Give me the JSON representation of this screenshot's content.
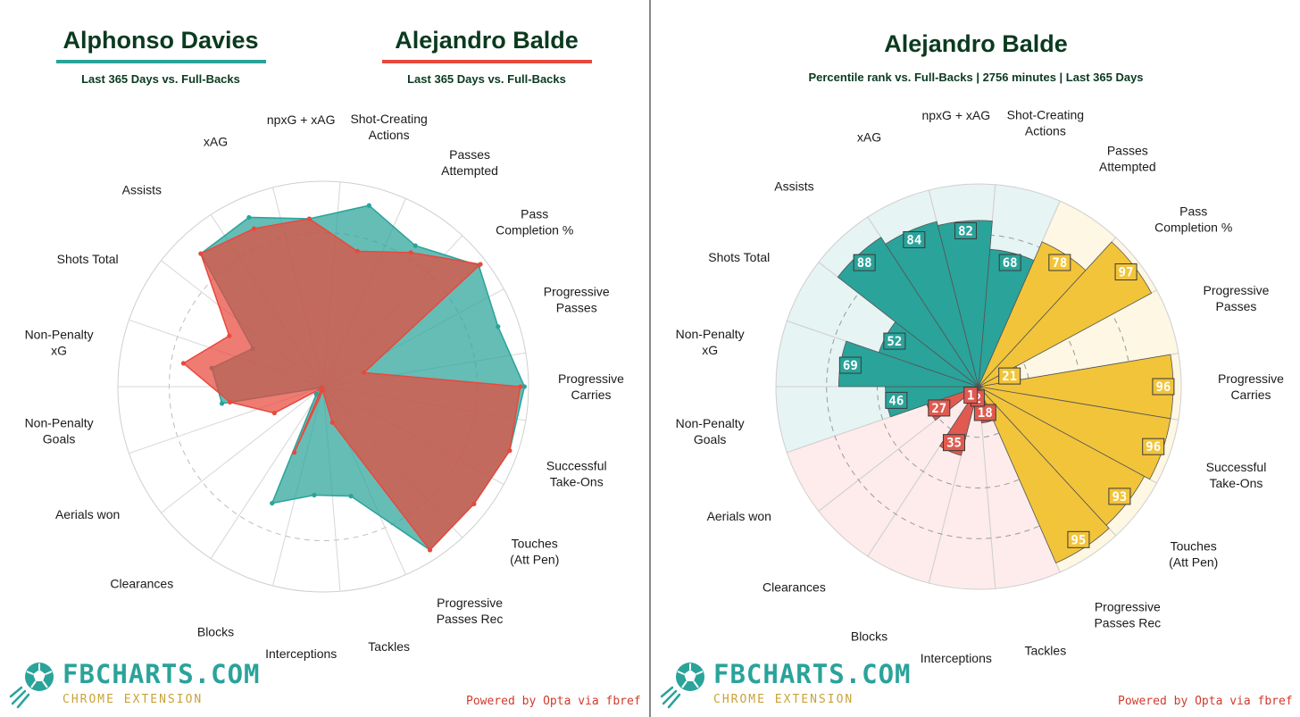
{
  "left": {
    "players": [
      {
        "name": "Alphonso Davies",
        "subtitle": "Last 365 Days vs. Full-Backs",
        "color": "#2aa39a"
      },
      {
        "name": "Alejandro Balde",
        "subtitle": "Last 365 Days vs. Full-Backs",
        "color": "#e8493d"
      }
    ]
  },
  "right": {
    "title": "Alejandro Balde",
    "subtitle": "Percentile rank vs. Full-Backs | 2756 minutes | Last 365 Days"
  },
  "branding": {
    "name": "FBCHARTS.COM",
    "tagline": "CHROME EXTENSION",
    "powered_by": "Powered by Opta via fbref"
  },
  "chart_data": [
    {
      "type": "radar",
      "categories": [
        "Progressive Carries",
        "Successful Take-Ons",
        "Touches (Att Pen)",
        "Progressive Passes Rec",
        "Tackles",
        "Interceptions",
        "Blocks",
        "Clearances",
        "Aerials won",
        "Non-Penalty Goals",
        "Non-Penalty xG",
        "Shots Total",
        "Assists",
        "xAG",
        "npxG + xAG",
        "Shot-Creating Actions",
        "Passes Attempted",
        "Pass Completion %",
        "Progressive Passes"
      ],
      "range": [
        0,
        100
      ],
      "series": [
        {
          "name": "Alphonso Davies",
          "color": "#2aa39a",
          "values": [
            98,
            96,
            93,
            95,
            55,
            53,
            62,
            5,
            1,
            50,
            55,
            39,
            88,
            90,
            82,
            91,
            82,
            96,
            90
          ]
        },
        {
          "name": "Alejandro Balde",
          "color": "#e8493d",
          "values": [
            96,
            96,
            93,
            95,
            18,
            2,
            35,
            1,
            27,
            46,
            69,
            52,
            88,
            84,
            82,
            68,
            78,
            97,
            21
          ]
        }
      ]
    },
    {
      "type": "polar-bar",
      "title": "Alejandro Balde",
      "range": [
        0,
        100
      ],
      "groups": [
        {
          "name": "attacking",
          "color": "#2aa39a",
          "background": "#e6f4f3"
        },
        {
          "name": "possession",
          "color": "#f2c43a",
          "background": "#fdf7e3"
        },
        {
          "name": "defending",
          "color": "#e05a50",
          "background": "#fdeceb"
        }
      ],
      "categories": [
        "Progressive Carries",
        "Successful Take-Ons",
        "Touches (Att Pen)",
        "Progressive Passes Rec",
        "Tackles",
        "Interceptions",
        "Blocks",
        "Clearances",
        "Aerials won",
        "Non-Penalty Goals",
        "Non-Penalty xG",
        "Shots Total",
        "Assists",
        "xAG",
        "npxG + xAG",
        "Shot-Creating Actions",
        "Passes Attempted",
        "Pass Completion %",
        "Progressive Passes"
      ],
      "category_groups": [
        "possession",
        "possession",
        "possession",
        "possession",
        "defending",
        "defending",
        "defending",
        "defending",
        "defending",
        "attacking",
        "attacking",
        "attacking",
        "attacking",
        "attacking",
        "attacking",
        "attacking",
        "possession",
        "possession",
        "possession"
      ],
      "values": [
        96,
        96,
        93,
        95,
        18,
        2,
        35,
        1,
        27,
        46,
        69,
        52,
        88,
        84,
        82,
        68,
        78,
        97,
        21
      ]
    }
  ]
}
